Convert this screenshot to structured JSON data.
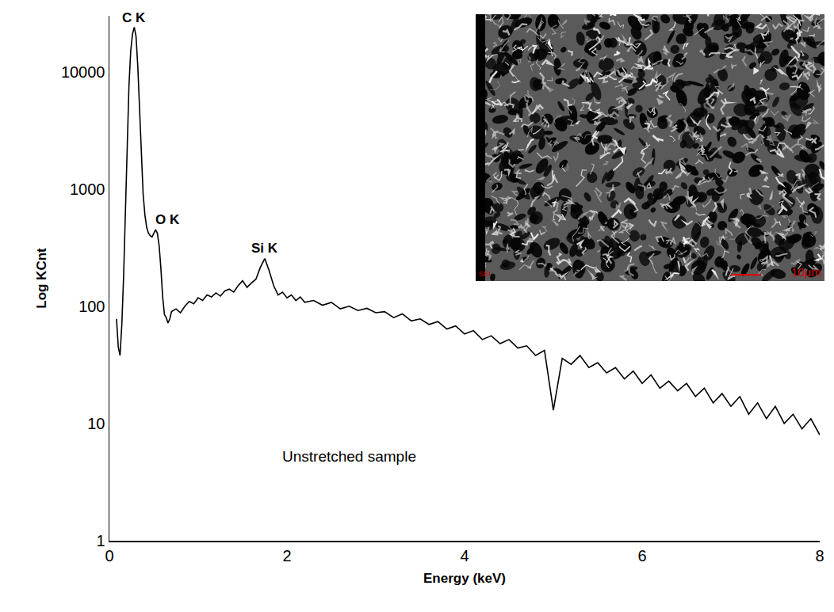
{
  "chart_data": {
    "type": "line",
    "xlabel": "Energy (keV)",
    "ylabel": "Log KCnt",
    "color": "#000000",
    "log": "y",
    "grid": false,
    "xlim": [
      0,
      8
    ],
    "ylim": [
      1,
      30000
    ],
    "xticks": [
      0,
      2,
      4,
      6,
      8
    ],
    "yticks": [
      1,
      10,
      100,
      1000,
      10000
    ],
    "x": [
      0.08,
      0.1,
      0.12,
      0.14,
      0.16,
      0.18,
      0.2,
      0.22,
      0.24,
      0.26,
      0.28,
      0.3,
      0.32,
      0.34,
      0.36,
      0.38,
      0.4,
      0.42,
      0.44,
      0.46,
      0.48,
      0.5,
      0.52,
      0.54,
      0.56,
      0.58,
      0.6,
      0.62,
      0.64,
      0.66,
      0.68,
      0.7,
      0.75,
      0.8,
      0.85,
      0.9,
      0.95,
      1.0,
      1.05,
      1.1,
      1.15,
      1.2,
      1.25,
      1.3,
      1.35,
      1.4,
      1.45,
      1.5,
      1.55,
      1.6,
      1.65,
      1.7,
      1.75,
      1.8,
      1.85,
      1.9,
      1.95,
      2.0,
      2.05,
      2.1,
      2.15,
      2.2,
      2.3,
      2.4,
      2.5,
      2.6,
      2.7,
      2.8,
      2.9,
      3.0,
      3.1,
      3.2,
      3.3,
      3.4,
      3.5,
      3.6,
      3.7,
      3.8,
      3.9,
      4.0,
      4.1,
      4.2,
      4.3,
      4.4,
      4.5,
      4.6,
      4.7,
      4.8,
      4.9,
      5.0,
      5.1,
      5.2,
      5.3,
      5.4,
      5.5,
      5.6,
      5.7,
      5.8,
      5.9,
      6.0,
      6.1,
      6.2,
      6.3,
      6.4,
      6.5,
      6.6,
      6.7,
      6.8,
      6.9,
      7.0,
      7.1,
      7.2,
      7.3,
      7.4,
      7.5,
      7.6,
      7.7,
      7.8,
      7.9,
      8.0
    ],
    "values": [
      78,
      45,
      38,
      70,
      180,
      700,
      2500,
      7500,
      15000,
      21000,
      24000,
      20000,
      11000,
      4500,
      1800,
      900,
      600,
      470,
      420,
      400,
      390,
      420,
      450,
      420,
      330,
      210,
      120,
      85,
      80,
      72,
      78,
      90,
      95,
      88,
      100,
      110,
      105,
      118,
      112,
      125,
      120,
      130,
      122,
      135,
      140,
      132,
      150,
      165,
      145,
      158,
      170,
      215,
      255,
      200,
      150,
      125,
      132,
      118,
      125,
      112,
      120,
      108,
      112,
      102,
      108,
      95,
      100,
      92,
      96,
      88,
      90,
      80,
      86,
      75,
      78,
      70,
      74,
      64,
      68,
      58,
      62,
      52,
      56,
      48,
      52,
      44,
      46,
      38,
      42,
      13,
      36,
      32,
      38,
      30,
      33,
      27,
      30,
      24,
      28,
      22,
      26,
      20,
      23,
      19,
      22,
      17,
      20,
      15,
      18,
      14,
      17,
      12,
      15,
      11,
      14,
      10,
      12,
      9,
      11,
      8
    ],
    "peak_labels": [
      {
        "text": "C K",
        "x": 0.28,
        "y": 24000
      },
      {
        "text": "O K",
        "x": 0.66,
        "y": 460
      },
      {
        "text": "Si K",
        "x": 1.75,
        "y": 260
      }
    ],
    "annotations": [
      {
        "text": "Unstretched sample",
        "x": 2.7,
        "y": 5.2
      }
    ],
    "inset": {
      "detector": "SEI",
      "scale_bar": "10μm"
    }
  }
}
